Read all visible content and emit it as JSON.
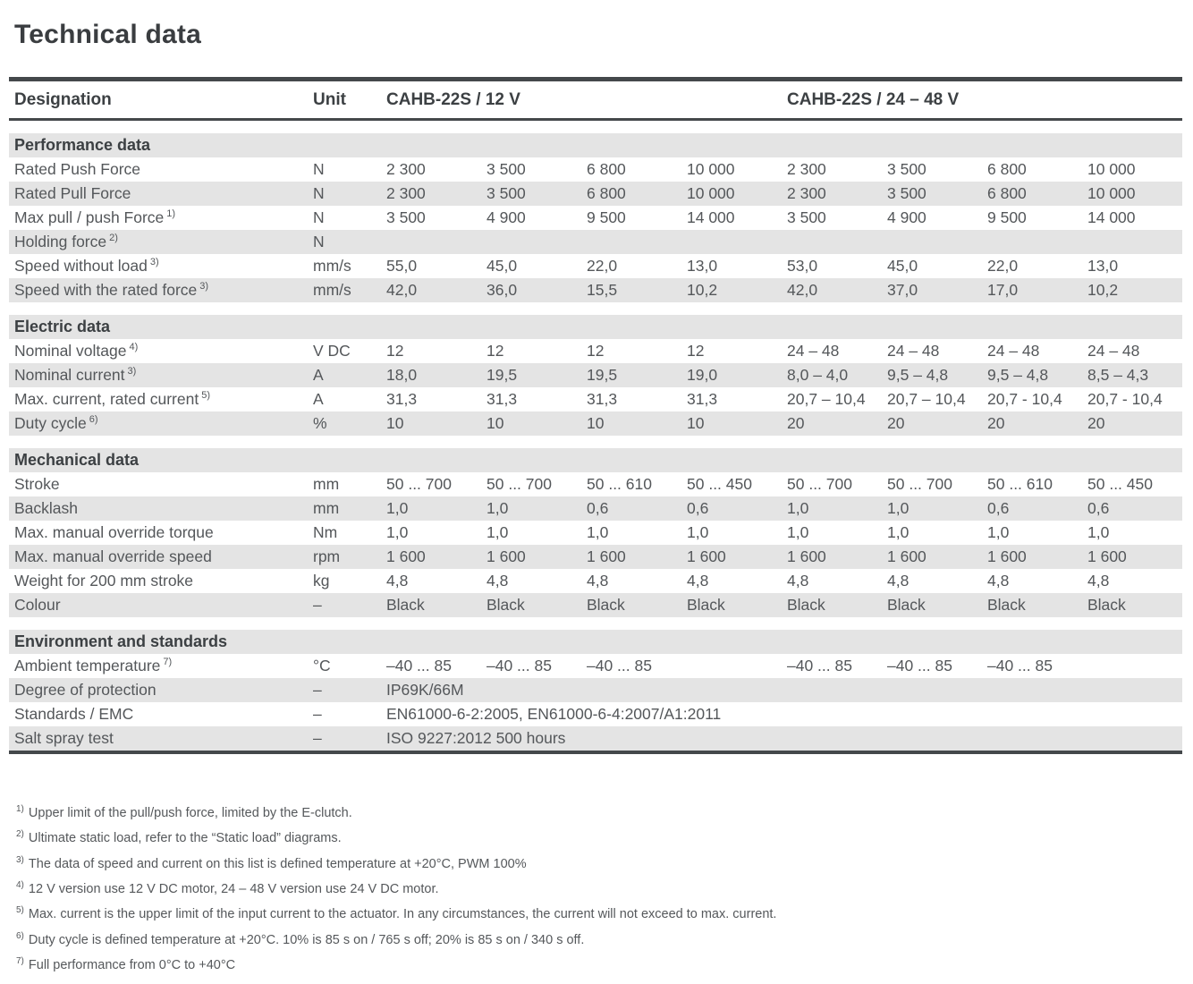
{
  "title": "Technical data",
  "colors": {
    "band_gray": "#e4e4e4",
    "rule_dark": "#44484b",
    "text_body": "#54575a",
    "text_heading": "#3c4043"
  },
  "table": {
    "header": {
      "designation": "Designation",
      "unit": "Unit",
      "group1": "CAHB-22S / 12 V",
      "group2": "CAHB-22S / 24 – 48 V"
    },
    "sections": [
      {
        "name": "Performance data",
        "rows": [
          {
            "designation": "Rated Push Force",
            "sup": "",
            "unit": "N",
            "values": [
              "2 300",
              "3 500",
              "6 800",
              "10 000",
              "2 300",
              "3 500",
              "6 800",
              "10 000"
            ]
          },
          {
            "designation": "Rated Pull Force",
            "sup": "",
            "unit": "N",
            "values": [
              "2 300",
              "3 500",
              "6 800",
              "10 000",
              "2 300",
              "3 500",
              "6 800",
              "10 000"
            ]
          },
          {
            "designation": "Max pull / push Force",
            "sup": "1)",
            "unit": "N",
            "values": [
              "3 500",
              "4 900",
              "9 500",
              "14 000",
              "3 500",
              "4 900",
              "9 500",
              "14 000"
            ]
          },
          {
            "designation": "Holding force",
            "sup": "2)",
            "unit": "N",
            "values": [
              "",
              "",
              "",
              "",
              "",
              "",
              "",
              ""
            ]
          },
          {
            "designation": "Speed without load",
            "sup": "3)",
            "unit": "mm/s",
            "values": [
              "55,0",
              "45,0",
              "22,0",
              "13,0",
              "53,0",
              "45,0",
              "22,0",
              "13,0"
            ]
          },
          {
            "designation": "Speed with the rated force",
            "sup": "3)",
            "unit": "mm/s",
            "values": [
              "42,0",
              "36,0",
              "15,5",
              "10,2",
              "42,0",
              "37,0",
              "17,0",
              "10,2"
            ]
          }
        ]
      },
      {
        "name": "Electric data",
        "rows": [
          {
            "designation": "Nominal voltage",
            "sup": "4)",
            "unit": "V DC",
            "values": [
              "12",
              "12",
              "12",
              "12",
              "24 – 48",
              "24 – 48",
              "24 – 48",
              "24 – 48"
            ]
          },
          {
            "designation": "Nominal current",
            "sup": "3)",
            "unit": "A",
            "values": [
              "18,0",
              "19,5",
              "19,5",
              "19,0",
              "8,0 – 4,0",
              "9,5 – 4,8",
              "9,5 – 4,8",
              "8,5 – 4,3"
            ]
          },
          {
            "designation": "Max. current, rated current",
            "sup": "5)",
            "unit": "A",
            "values": [
              "31,3",
              "31,3",
              "31,3",
              "31,3",
              "20,7 – 10,4",
              "20,7 – 10,4",
              "20,7 - 10,4",
              "20,7 - 10,4"
            ]
          },
          {
            "designation": "Duty cycle",
            "sup": "6)",
            "unit": "%",
            "values": [
              "10",
              "10",
              "10",
              "10",
              "20",
              "20",
              "20",
              "20"
            ]
          }
        ]
      },
      {
        "name": "Mechanical data",
        "rows": [
          {
            "designation": "Stroke",
            "sup": "",
            "unit": "mm",
            "values": [
              "50 ... 700",
              "50 ... 700",
              "50 ... 610",
              "50 ... 450",
              "50 ... 700",
              "50 ... 700",
              "50 ... 610",
              "50 ... 450"
            ]
          },
          {
            "designation": "Backlash",
            "sup": "",
            "unit": "mm",
            "values": [
              "1,0",
              "1,0",
              "0,6",
              "0,6",
              "1,0",
              "1,0",
              "0,6",
              "0,6"
            ]
          },
          {
            "designation": "Max. manual override torque",
            "sup": "",
            "unit": "Nm",
            "values": [
              "1,0",
              "1,0",
              "1,0",
              "1,0",
              "1,0",
              "1,0",
              "1,0",
              "1,0"
            ]
          },
          {
            "designation": "Max. manual override speed",
            "sup": "",
            "unit": "rpm",
            "values": [
              "1 600",
              "1 600",
              "1 600",
              "1 600",
              "1 600",
              "1 600",
              "1 600",
              "1 600"
            ]
          },
          {
            "designation": "Weight for 200 mm stroke",
            "sup": "",
            "unit": "kg",
            "values": [
              "4,8",
              "4,8",
              "4,8",
              "4,8",
              "4,8",
              "4,8",
              "4,8",
              "4,8"
            ]
          },
          {
            "designation": "Colour",
            "sup": "",
            "unit": "–",
            "values": [
              "Black",
              "Black",
              "Black",
              "Black",
              "Black",
              "Black",
              "Black",
              "Black"
            ]
          }
        ]
      },
      {
        "name": "Environment and standards",
        "rows": [
          {
            "designation": "Ambient temperature",
            "sup": "7)",
            "unit": "°C",
            "values": [
              "–40 ... 85",
              "–40 ... 85",
              "–40 ... 85",
              "",
              "–40 ... 85",
              "–40 ... 85",
              "–40 ... 85",
              ""
            ]
          },
          {
            "designation": "Degree of protection",
            "sup": "",
            "unit": "–",
            "span": "IP69K/66M"
          },
          {
            "designation": "Standards / EMC",
            "sup": "",
            "unit": "–",
            "span": "EN61000-6-2:2005, EN61000-6-4:2007/A1:2011"
          },
          {
            "designation": "Salt spray test",
            "sup": "",
            "unit": "–",
            "span": "ISO 9227:2012 500 hours"
          }
        ]
      }
    ]
  },
  "footnotes": [
    {
      "marker": "1)",
      "text": "Upper limit of the pull/push force, limited by the E-clutch."
    },
    {
      "marker": "2)",
      "text": "Ultimate static load, refer to the “Static load” diagrams."
    },
    {
      "marker": "3)",
      "text": "The data of speed and current on this list is defined temperature at +20°C, PWM 100%"
    },
    {
      "marker": "4)",
      "text": "12 V version use 12 V DC motor, 24 – 48 V version use 24 V DC motor."
    },
    {
      "marker": "5)",
      "text": "Max. current is the upper limit of the input current to the actuator. In any circumstances, the current will not exceed to max. current."
    },
    {
      "marker": "6)",
      "text": "Duty cycle is defined temperature at +20°C. 10% is 85 s on / 765 s off; 20% is 85 s on / 340 s off."
    },
    {
      "marker": "7)",
      "text": "Full performance from 0°C to +40°C"
    }
  ]
}
